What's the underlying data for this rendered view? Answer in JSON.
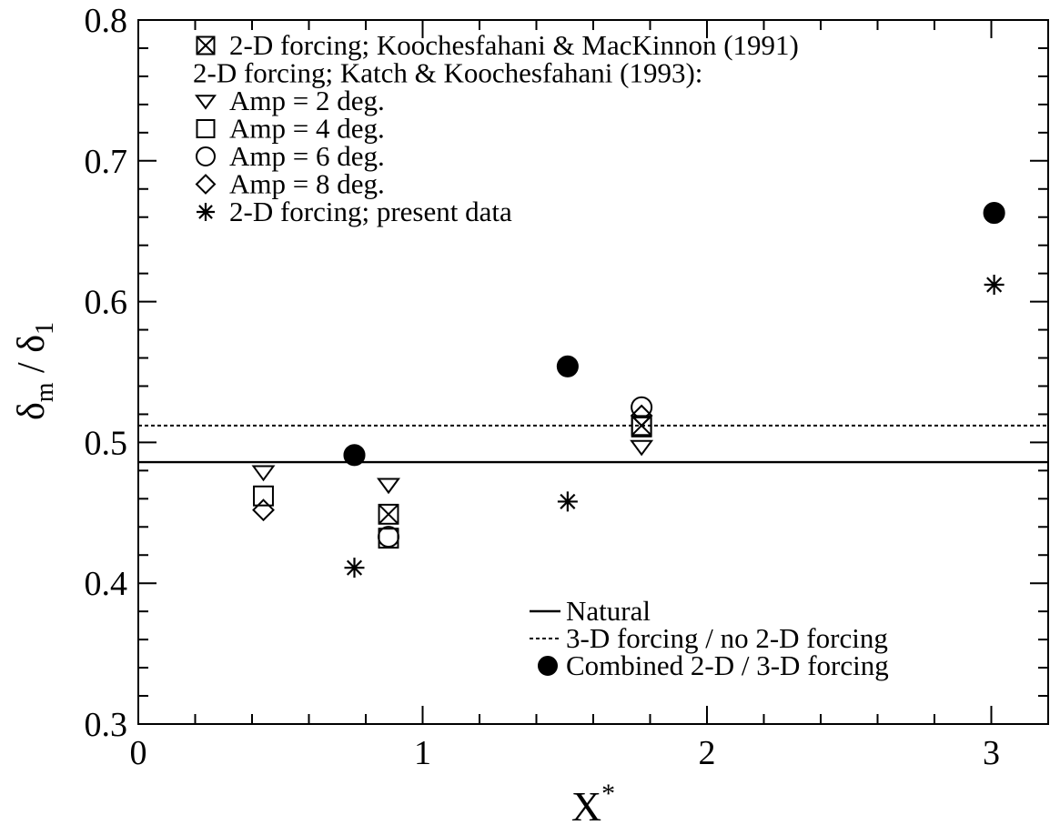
{
  "chart_data": {
    "type": "scatter",
    "xlabel": {
      "main": "X",
      "sup": "*"
    },
    "ylabel": {
      "num": "δ",
      "num_sub": "m",
      "sep": " / ",
      "den": "δ",
      "den_sub": "1"
    },
    "xlim": [
      0,
      3.2
    ],
    "ylim": [
      0.3,
      0.8
    ],
    "x_ticks": [
      0,
      1,
      2,
      3
    ],
    "x_tick_labels": [
      "0",
      "1",
      "2",
      "3"
    ],
    "x_minor_step": 0.2,
    "y_ticks": [
      0.3,
      0.4,
      0.5,
      0.6,
      0.7,
      0.8
    ],
    "y_tick_labels": [
      "0.3",
      "0.4",
      "0.5",
      "0.6",
      "0.7",
      "0.8"
    ],
    "y_minor_step": 0.02,
    "grid": false,
    "legend_upper": [
      {
        "marker": "boxx",
        "text": "2-D forcing; Koochesfahani & MacKinnon (1991)"
      },
      {
        "marker": "none",
        "text": "2-D forcing; Katch & Koochesfahani (1993):"
      },
      {
        "marker": "tri",
        "text": "Amp = 2 deg."
      },
      {
        "marker": "square",
        "text": "Amp = 4 deg."
      },
      {
        "marker": "circle",
        "text": "Amp = 6 deg."
      },
      {
        "marker": "diamond",
        "text": "Amp = 8 deg."
      },
      {
        "marker": "star",
        "text": "2-D forcing; present data"
      }
    ],
    "legend_lower": [
      {
        "marker": "solid-line",
        "text": "Natural"
      },
      {
        "marker": "dashed-line",
        "text": "3-D forcing / no 2-D forcing"
      },
      {
        "marker": "filled-circle",
        "text": "Combined 2-D / 3-D forcing"
      }
    ],
    "reference_lines": [
      {
        "name": "Natural",
        "style": "solid",
        "y": 0.486
      },
      {
        "name": "3-D forcing / no 2-D forcing",
        "style": "dashed",
        "y": 0.512
      }
    ],
    "series": [
      {
        "name": "2-D forcing; Koochesfahani & MacKinnon (1991)",
        "marker": "boxx",
        "points": [
          [
            0.88,
            0.449
          ],
          [
            1.77,
            0.512
          ]
        ]
      },
      {
        "name": "Amp = 2 deg.",
        "marker": "tri",
        "points": [
          [
            0.44,
            0.479
          ],
          [
            0.88,
            0.47
          ],
          [
            1.77,
            0.497
          ]
        ]
      },
      {
        "name": "Amp = 4 deg.",
        "marker": "square",
        "points": [
          [
            0.44,
            0.462
          ],
          [
            0.88,
            0.432
          ],
          [
            1.77,
            0.511
          ]
        ]
      },
      {
        "name": "Amp = 6 deg.",
        "marker": "circle",
        "points": [
          [
            0.88,
            0.433
          ],
          [
            1.77,
            0.525
          ]
        ]
      },
      {
        "name": "Amp = 8 deg.",
        "marker": "diamond",
        "points": [
          [
            0.44,
            0.452
          ],
          [
            1.77,
            0.519
          ]
        ]
      },
      {
        "name": "2-D forcing; present data",
        "marker": "star",
        "points": [
          [
            0.76,
            0.411
          ],
          [
            1.51,
            0.458
          ],
          [
            3.01,
            0.612
          ]
        ]
      },
      {
        "name": "Combined 2-D / 3-D forcing",
        "marker": "filled-circle",
        "points": [
          [
            0.76,
            0.491
          ],
          [
            1.51,
            0.554
          ],
          [
            3.01,
            0.663
          ]
        ]
      }
    ]
  }
}
